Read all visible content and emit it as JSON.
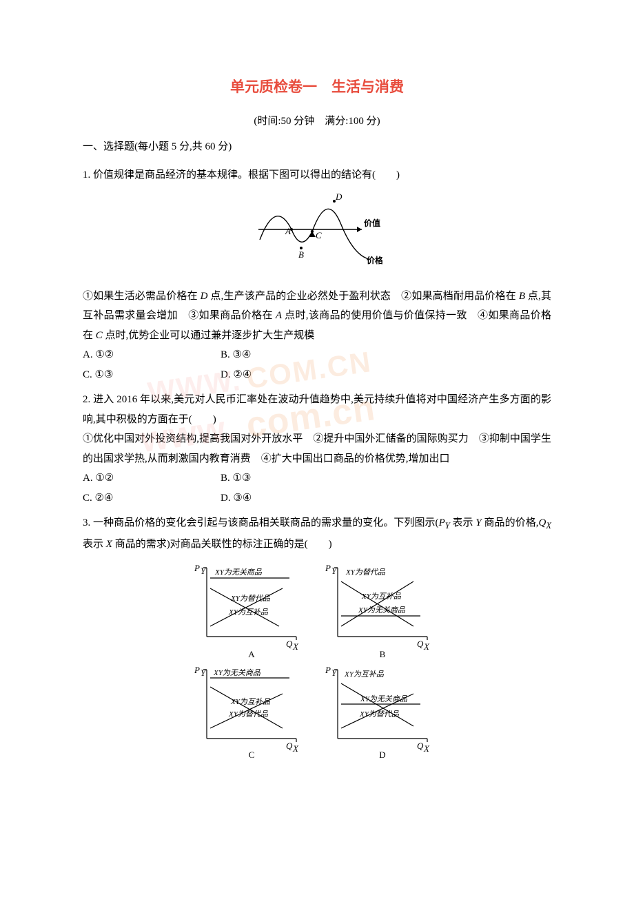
{
  "title": "单元质检卷一　生活与消费",
  "subtitle": "(时间:50 分钟　满分:100 分)",
  "sectionHead": "一、选择题(每小题 5 分,共 60 分)",
  "q1": {
    "stem": "1. 价值规律是商品经济的基本规律。根据下图可以得出的结论有(　　)",
    "propositions": "①如果生活必需品价格在 <i>D</i> 点,生产该产品的企业必然处于盈利状态　②如果高档耐用品价格在 <i>B</i> 点,其互补品需求量会增加　③如果商品价格在 <i>A</i> 点时,该商品的使用价值与价值保持一致　④如果商品价格在 <i>C</i> 点时,优势企业可以通过兼并逐步扩大生产规模",
    "options": {
      "a": "A. ①②",
      "b": "B. ③④",
      "c": "C. ①③",
      "d": "D. ②④"
    },
    "chart": {
      "type": "line",
      "stroke": "#000000",
      "stroke_width": 1.4,
      "points_label": [
        "A",
        "B",
        "C",
        "D"
      ],
      "value_label": "价值",
      "price_label": "价格",
      "width": 190,
      "height": 110
    }
  },
  "q2": {
    "stem": "2. 进入 2016 年以来,美元对人民币汇率处在波动升值趋势中,美元持续升值将对中国经济产生多方面的影响,其中积极的方面在于(　　)",
    "propositions": "①优化中国对外投资结构,提高我国对外开放水平　②提升中国外汇储备的国际购买力　③抑制中国学生的出国求学热,从而刺激国内教育消费　④扩大中国出口商品的价格优势,增加出口",
    "options": {
      "a": "A. ①②",
      "b": "B. ①③",
      "c": "C. ②④",
      "d": "D. ③④"
    }
  },
  "q3": {
    "stem_part1": "3. 一种商品价格的变化会引起与该商品相关联商品的需求量的变化。下列图示(",
    "py": "P",
    "py_sub": "Y",
    "py_desc": " 表示 ",
    "y_var": "Y",
    "y_desc": " 商品的价格,",
    "qx": "Q",
    "qx_sub": "X",
    "qx_desc": " 表示 ",
    "x_var": "X",
    "x_desc": " 商品的需求)对商品关联性的标注正确的是(　　)",
    "grid": {
      "panel_labels": [
        "A",
        "B",
        "C",
        "D"
      ],
      "y_axis": "Pᵧ",
      "x_axis": "Qₓ",
      "line_labels": {
        "none": "XY为无关商品",
        "sub": "XY为替代品",
        "comp": "XY为互补品"
      },
      "arrangement": {
        "A": [
          "XY为无关商品",
          "XY为替代品",
          "XY为互补品"
        ],
        "B": [
          "XY为替代品",
          "XY为互补品",
          "XY为无关商品"
        ],
        "C": [
          "XY为无关商品",
          "XY为互补品",
          "XY为替代品"
        ],
        "D": [
          "XY为互补品",
          "XY为无关商品",
          "XY为替代品"
        ]
      },
      "stroke": "#000000",
      "stroke_width": 1.2
    }
  },
  "watermark": {
    "text_lines": [
      "www.com.cn"
    ],
    "logo_text": "www.com.cn",
    "color_orange": "#f39c5a",
    "color_pink": "#f7a6a0",
    "opacity": 0.18
  }
}
